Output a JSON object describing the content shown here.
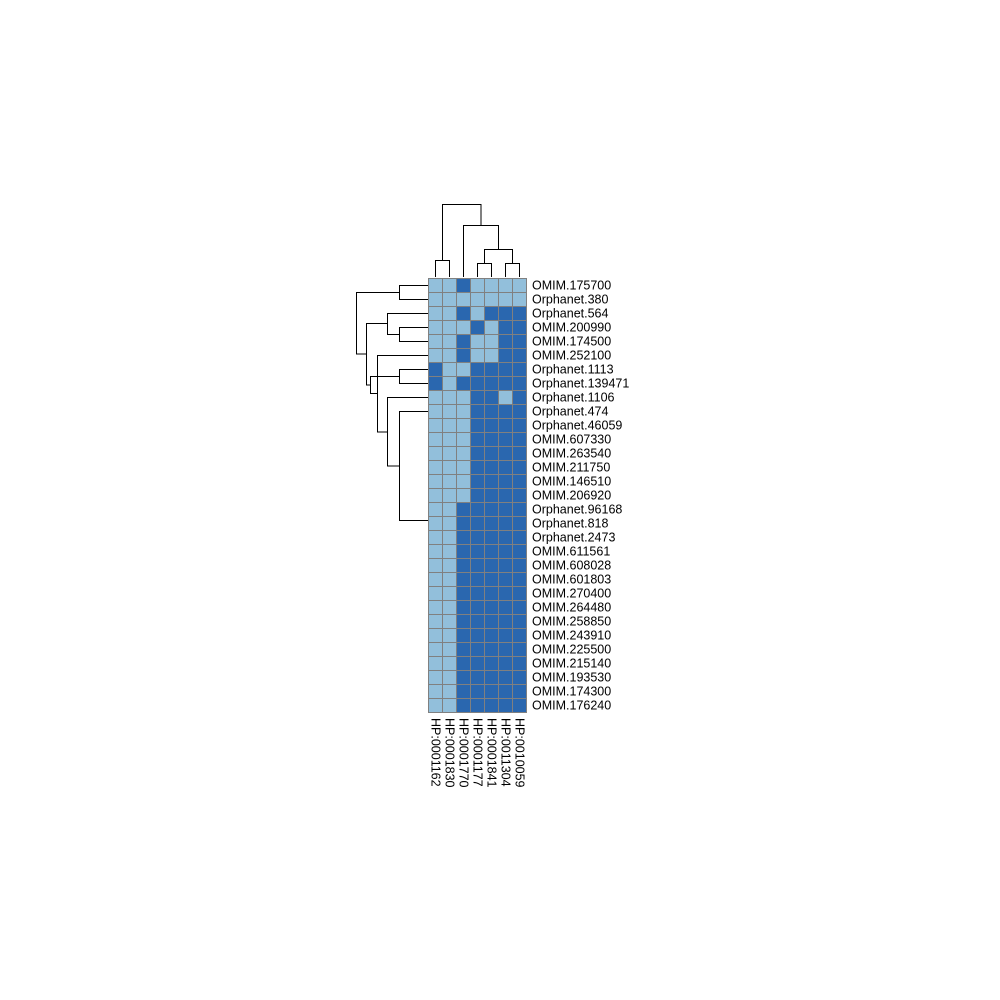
{
  "chart_data": {
    "type": "heatmap",
    "title": "",
    "legend": "none",
    "colors": {
      "low": "#92BFDB",
      "high": "#2A67AF",
      "cell_border": "#808080",
      "dendrogram": "#000000"
    },
    "columns": [
      "HP:0001162",
      "HP:0001830",
      "HP:0001770",
      "HP:0001177",
      "HP:0001841",
      "HP:0011304",
      "HP:0010059"
    ],
    "rows": [
      "OMIM.175700",
      "Orphanet.380",
      "Orphanet.564",
      "OMIM.200990",
      "OMIM.174500",
      "OMIM.252100",
      "Orphanet.1113",
      "Orphanet.139471",
      "Orphanet.1106",
      "Orphanet.474",
      "Orphanet.46059",
      "OMIM.607330",
      "OMIM.263540",
      "OMIM.211750",
      "OMIM.146510",
      "OMIM.206920",
      "Orphanet.96168",
      "Orphanet.818",
      "Orphanet.2473",
      "OMIM.611561",
      "OMIM.608028",
      "OMIM.601803",
      "OMIM.270400",
      "OMIM.264480",
      "OMIM.258850",
      "OMIM.243910",
      "OMIM.225500",
      "OMIM.215140",
      "OMIM.193530",
      "OMIM.174300",
      "OMIM.176240"
    ],
    "values": [
      [
        0,
        0,
        1,
        0,
        0,
        0,
        0
      ],
      [
        0,
        0,
        0,
        0,
        0,
        0,
        0
      ],
      [
        0,
        0,
        1,
        0,
        1,
        1,
        1
      ],
      [
        0,
        0,
        0,
        1,
        0,
        1,
        1
      ],
      [
        0,
        0,
        1,
        0,
        0,
        1,
        1
      ],
      [
        0,
        0,
        1,
        0,
        0,
        1,
        1
      ],
      [
        1,
        0,
        0,
        1,
        1,
        1,
        1
      ],
      [
        1,
        0,
        1,
        1,
        1,
        1,
        1
      ],
      [
        0,
        0,
        0,
        1,
        1,
        0,
        1
      ],
      [
        0,
        0,
        0,
        1,
        1,
        1,
        1
      ],
      [
        0,
        0,
        0,
        1,
        1,
        1,
        1
      ],
      [
        0,
        0,
        0,
        1,
        1,
        1,
        1
      ],
      [
        0,
        0,
        0,
        1,
        1,
        1,
        1
      ],
      [
        0,
        0,
        0,
        1,
        1,
        1,
        1
      ],
      [
        0,
        0,
        0,
        1,
        1,
        1,
        1
      ],
      [
        0,
        0,
        0,
        1,
        1,
        1,
        1
      ],
      [
        0,
        0,
        1,
        1,
        1,
        1,
        1
      ],
      [
        0,
        0,
        1,
        1,
        1,
        1,
        1
      ],
      [
        0,
        0,
        1,
        1,
        1,
        1,
        1
      ],
      [
        0,
        0,
        1,
        1,
        1,
        1,
        1
      ],
      [
        0,
        0,
        1,
        1,
        1,
        1,
        1
      ],
      [
        0,
        0,
        1,
        1,
        1,
        1,
        1
      ],
      [
        0,
        0,
        1,
        1,
        1,
        1,
        1
      ],
      [
        0,
        0,
        1,
        1,
        1,
        1,
        1
      ],
      [
        0,
        0,
        1,
        1,
        1,
        1,
        1
      ],
      [
        0,
        0,
        1,
        1,
        1,
        1,
        1
      ],
      [
        0,
        0,
        1,
        1,
        1,
        1,
        1
      ],
      [
        0,
        0,
        1,
        1,
        1,
        1,
        1
      ],
      [
        0,
        0,
        1,
        1,
        1,
        1,
        1
      ],
      [
        0,
        0,
        1,
        1,
        1,
        1,
        1
      ],
      [
        0,
        0,
        1,
        1,
        1,
        1,
        1
      ]
    ]
  }
}
